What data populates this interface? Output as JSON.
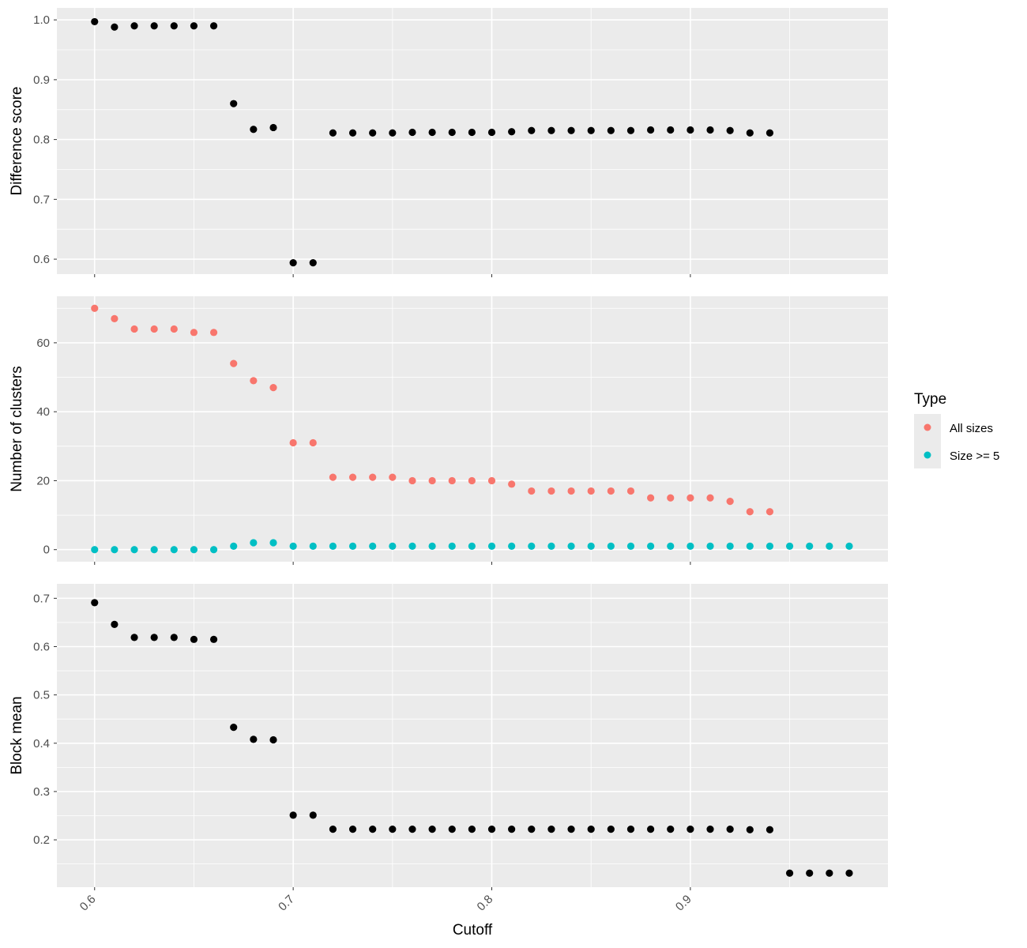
{
  "chart_data": [
    {
      "type": "scatter",
      "ylabel": "Difference score",
      "ylim": [
        0.575,
        1.02
      ],
      "y_ticks": [
        "0.6",
        "0.7",
        "0.8",
        "0.9",
        "1.0"
      ],
      "series": [
        {
          "color": "#000000",
          "x": [
            0.6,
            0.61,
            0.62,
            0.63,
            0.64,
            0.65,
            0.66,
            0.67,
            0.68,
            0.69,
            0.7,
            0.71,
            0.72,
            0.73,
            0.74,
            0.75,
            0.76,
            0.77,
            0.78,
            0.79,
            0.8,
            0.81,
            0.82,
            0.83,
            0.84,
            0.85,
            0.86,
            0.87,
            0.88,
            0.89,
            0.9,
            0.91,
            0.92,
            0.93,
            0.94
          ],
          "y": [
            0.997,
            0.988,
            0.99,
            0.99,
            0.99,
            0.99,
            0.99,
            0.86,
            0.817,
            0.82,
            0.594,
            0.594,
            0.811,
            0.811,
            0.811,
            0.811,
            0.812,
            0.812,
            0.812,
            0.812,
            0.812,
            0.813,
            0.815,
            0.815,
            0.815,
            0.815,
            0.815,
            0.815,
            0.816,
            0.816,
            0.816,
            0.816,
            0.815,
            0.811,
            0.811
          ]
        }
      ]
    },
    {
      "type": "scatter",
      "ylabel": "Number of clusters",
      "ylim": [
        -3.5,
        73.5
      ],
      "y_ticks": [
        "0",
        "20",
        "40",
        "60"
      ],
      "series": [
        {
          "name": "All sizes",
          "color": "#F8766D",
          "x": [
            0.6,
            0.61,
            0.62,
            0.63,
            0.64,
            0.65,
            0.66,
            0.67,
            0.68,
            0.69,
            0.7,
            0.71,
            0.72,
            0.73,
            0.74,
            0.75,
            0.76,
            0.77,
            0.78,
            0.79,
            0.8,
            0.81,
            0.82,
            0.83,
            0.84,
            0.85,
            0.86,
            0.87,
            0.88,
            0.89,
            0.9,
            0.91,
            0.92,
            0.93,
            0.94
          ],
          "y": [
            70,
            67,
            64,
            64,
            64,
            63,
            63,
            54,
            49,
            47,
            31,
            31,
            21,
            21,
            21,
            21,
            20,
            20,
            20,
            20,
            20,
            19,
            17,
            17,
            17,
            17,
            17,
            17,
            15,
            15,
            15,
            15,
            14,
            11,
            11
          ]
        },
        {
          "name": "Size >= 5",
          "color": "#00BFC4",
          "x": [
            0.6,
            0.61,
            0.62,
            0.63,
            0.64,
            0.65,
            0.66,
            0.67,
            0.68,
            0.69,
            0.7,
            0.71,
            0.72,
            0.73,
            0.74,
            0.75,
            0.76,
            0.77,
            0.78,
            0.79,
            0.8,
            0.81,
            0.82,
            0.83,
            0.84,
            0.85,
            0.86,
            0.87,
            0.88,
            0.89,
            0.9,
            0.91,
            0.92,
            0.93,
            0.94,
            0.95,
            0.96,
            0.97,
            0.98
          ],
          "y": [
            0,
            0,
            0,
            0,
            0,
            0,
            0,
            1,
            2,
            2,
            1,
            1,
            1,
            1,
            1,
            1,
            1,
            1,
            1,
            1,
            1,
            1,
            1,
            1,
            1,
            1,
            1,
            1,
            1,
            1,
            1,
            1,
            1,
            1,
            1,
            1,
            1,
            1,
            1
          ]
        }
      ]
    },
    {
      "type": "scatter",
      "ylabel": "Block mean",
      "ylim": [
        0.102,
        0.73
      ],
      "y_ticks": [
        "0.2",
        "0.3",
        "0.4",
        "0.5",
        "0.6",
        "0.7"
      ],
      "series": [
        {
          "color": "#000000",
          "x": [
            0.6,
            0.61,
            0.62,
            0.63,
            0.64,
            0.65,
            0.66,
            0.67,
            0.68,
            0.69,
            0.7,
            0.71,
            0.72,
            0.73,
            0.74,
            0.75,
            0.76,
            0.77,
            0.78,
            0.79,
            0.8,
            0.81,
            0.82,
            0.83,
            0.84,
            0.85,
            0.86,
            0.87,
            0.88,
            0.89,
            0.9,
            0.91,
            0.92,
            0.93,
            0.94,
            0.95,
            0.96,
            0.97,
            0.98
          ],
          "y": [
            0.691,
            0.646,
            0.619,
            0.619,
            0.619,
            0.615,
            0.615,
            0.433,
            0.408,
            0.407,
            0.251,
            0.251,
            0.222,
            0.222,
            0.222,
            0.222,
            0.222,
            0.222,
            0.222,
            0.222,
            0.222,
            0.222,
            0.222,
            0.222,
            0.222,
            0.222,
            0.222,
            0.222,
            0.222,
            0.222,
            0.222,
            0.222,
            0.222,
            0.221,
            0.221,
            0.131,
            0.131,
            0.131,
            0.131
          ]
        }
      ]
    }
  ],
  "x_axis": {
    "label": "Cutoff",
    "xlim": [
      0.581,
      0.9995
    ],
    "ticks": [
      "0.6",
      "0.7",
      "0.8",
      "0.9"
    ]
  },
  "legend": {
    "title": "Type",
    "position": "right",
    "entries": [
      {
        "label": "All sizes",
        "color": "#F8766D"
      },
      {
        "label": "Size >= 5",
        "color": "#00BFC4"
      }
    ]
  },
  "style": {
    "panel_background": "#EBEBEB",
    "grid_color": "#FFFFFF",
    "tick_color": "#333333",
    "tick_label_color": "#4D4D4D"
  }
}
